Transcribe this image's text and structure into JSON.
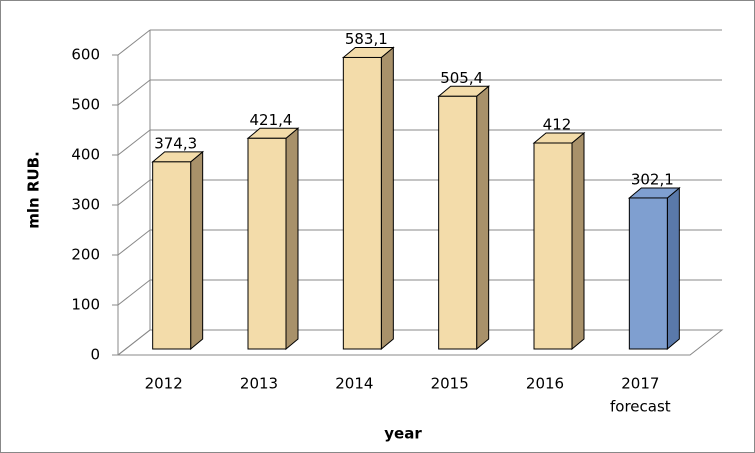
{
  "chart_data": {
    "type": "bar3d",
    "y_label": "mln RUB.",
    "x_label": "year",
    "categories": [
      "2012",
      "2013",
      "2014",
      "2015",
      "2016",
      "2017"
    ],
    "category_note": "forecast",
    "values": [
      374.3,
      421.4,
      583.1,
      505.4,
      412,
      302.1
    ],
    "value_labels": [
      "374,3",
      "421,4",
      "583,1",
      "505,4",
      "412",
      "302,1"
    ],
    "colors": [
      "#f3dcaa",
      "#f3dcaa",
      "#f3dcaa",
      "#f3dcaa",
      "#f3dcaa",
      "#7f9fd0"
    ],
    "ylim": [
      0,
      600
    ],
    "yticks": [
      0,
      100,
      200,
      300,
      400,
      500,
      600
    ],
    "grid": true
  }
}
